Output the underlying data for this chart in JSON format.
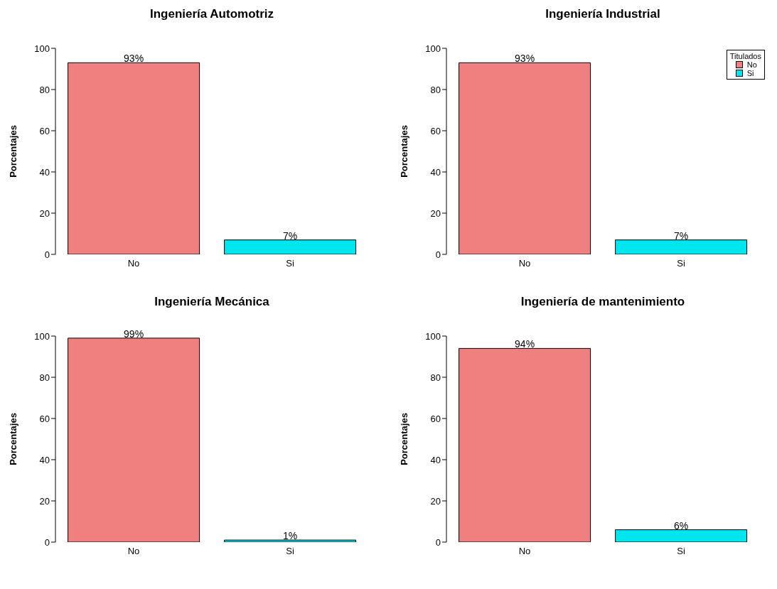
{
  "chart_data": [
    {
      "type": "bar",
      "title": "Ingeniería Automotriz",
      "ylabel": "Porcentajes",
      "categories": [
        "No",
        "Si"
      ],
      "stacked": true,
      "series": [
        {
          "color": "#f08080",
          "values": [
            93,
            null
          ],
          "value_labels": [
            "93%",
            null
          ]
        },
        {
          "color": "#00e5ee",
          "values": [
            null,
            7
          ],
          "value_labels": [
            null,
            "7%"
          ]
        }
      ],
      "ylim": [
        0,
        100
      ],
      "yticks": [
        0,
        20,
        40,
        60,
        80,
        100
      ],
      "grid": false,
      "legend": false
    },
    {
      "type": "bar",
      "title": "Ingeniería Industrial",
      "ylabel": "Porcentajes",
      "categories": [
        "No",
        "Si"
      ],
      "stacked": true,
      "series": [
        {
          "name": "No",
          "color": "#f08080",
          "values": [
            93,
            null
          ],
          "value_labels": [
            "93%",
            null
          ]
        },
        {
          "name": "Si",
          "color": "#00e5ee",
          "values": [
            null,
            7
          ],
          "value_labels": [
            null,
            "7%"
          ]
        }
      ],
      "ylim": [
        0,
        100
      ],
      "yticks": [
        0,
        20,
        40,
        60,
        80,
        100
      ],
      "grid": false,
      "legend": "top right",
      "legend_title": "Titulados"
    },
    {
      "type": "bar",
      "title": "Ingeniería Mecánica",
      "ylabel": "Porcentajes",
      "categories": [
        "No",
        "Si"
      ],
      "stacked": true,
      "series": [
        {
          "color": "#f08080",
          "values": [
            99,
            null
          ],
          "value_labels": [
            "99%",
            null
          ]
        },
        {
          "color": "#00e5ee",
          "values": [
            null,
            1
          ],
          "value_labels": [
            null,
            "1%"
          ]
        }
      ],
      "ylim": [
        0,
        100
      ],
      "yticks": [
        0,
        20,
        40,
        60,
        80,
        100
      ],
      "grid": false,
      "legend": false
    },
    {
      "type": "bar",
      "title": "Ingeniería de mantenimiento",
      "ylabel": "Porcentajes",
      "categories": [
        "No",
        "Si"
      ],
      "stacked": true,
      "series": [
        {
          "color": "#f08080",
          "values": [
            94,
            null
          ],
          "value_labels": [
            "94%",
            null
          ]
        },
        {
          "color": "#00e5ee",
          "values": [
            null,
            6
          ],
          "value_labels": [
            null,
            "6%"
          ]
        }
      ],
      "ylim": [
        0,
        100
      ],
      "yticks": [
        0,
        20,
        40,
        60,
        80,
        100
      ],
      "grid": false,
      "legend": false
    }
  ]
}
